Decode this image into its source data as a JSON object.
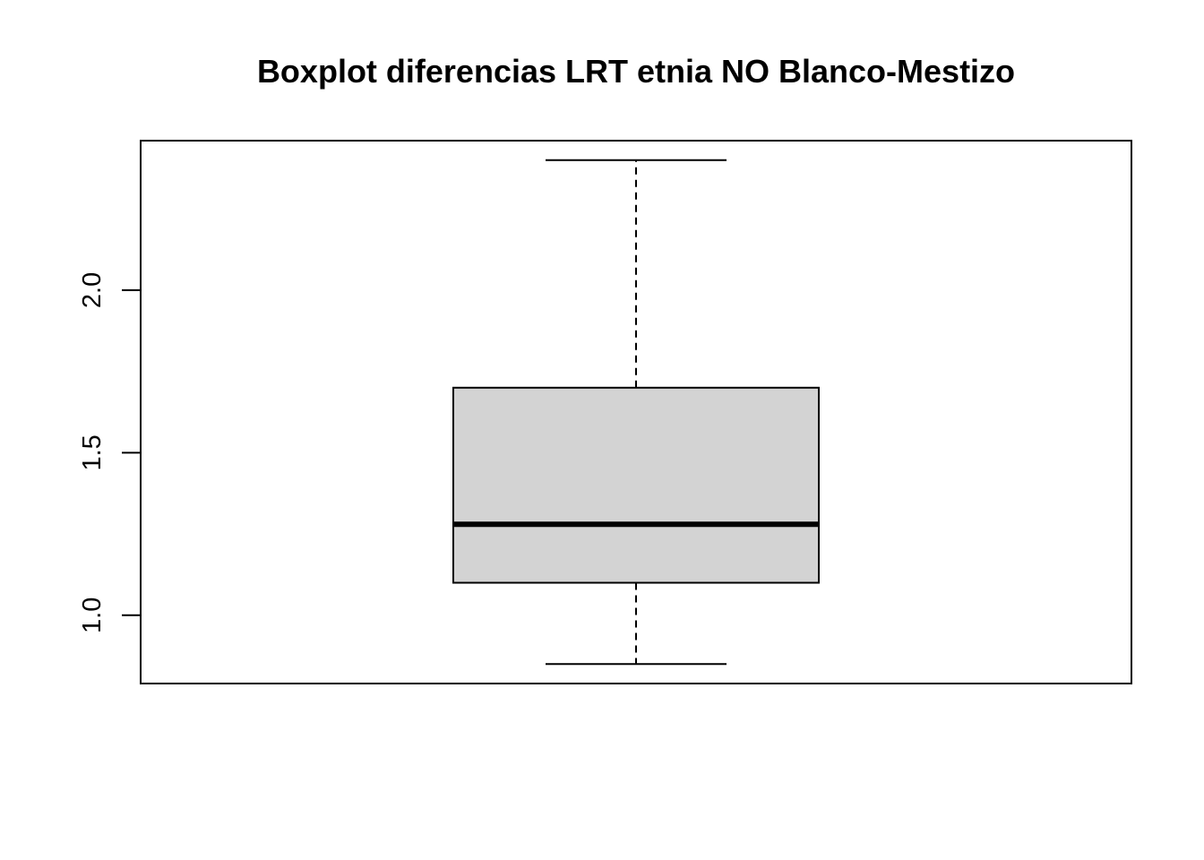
{
  "chart_data": {
    "type": "boxplot",
    "title": "Boxplot diferencias LRT etnia NO Blanco-Mestizo",
    "xlabel": "",
    "ylabel": "",
    "ylim": [
      0.79,
      2.46
    ],
    "yticks": [
      1.0,
      1.5,
      2.0
    ],
    "ytick_labels": [
      "1.0",
      "1.5",
      "2.0"
    ],
    "grid": false,
    "box": {
      "whisker_low": 0.85,
      "q1": 1.1,
      "median": 1.28,
      "q3": 1.7,
      "whisker_high": 2.4
    },
    "colors": {
      "box_fill": "#d3d3d3",
      "stroke": "#000000"
    }
  }
}
